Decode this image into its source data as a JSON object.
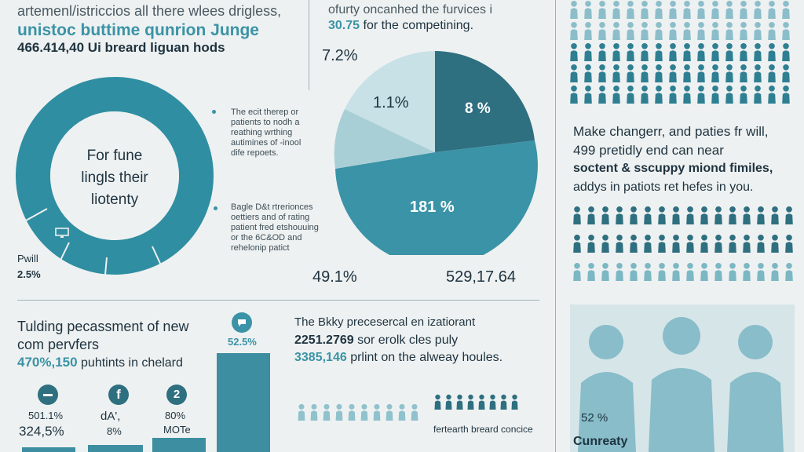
{
  "top_left": {
    "line1": "artemenl/istriccios all there wlees drigless,",
    "line2": "unistoc buttime qunrion Junge",
    "line3": "466.414,40 Ui breard liguan hods"
  },
  "top_center": {
    "line1": "ofurty oncanhed the furvices i",
    "line2_num": "30.75",
    "line2_text": "for the competining."
  },
  "donut": {
    "center_line1": "For fune",
    "center_line2": "lingls their",
    "center_line3": "liotenty",
    "pwill_label": "Pwill",
    "pwill_value": "2.5%",
    "icon": "monitor-icon"
  },
  "notes": {
    "note1": [
      "The ecit therep or",
      "patients to nodh a",
      "reathing wrthing",
      "autimines of -inool",
      "dife repoets."
    ],
    "note2": [
      "Bagle D&t rtrerionces",
      "oettiers and of rating",
      "patient fred etshouuing",
      "or the 6C&OD and",
      "rehelonip patict"
    ]
  },
  "pie": {
    "top_label": "7.2%",
    "slice_a": "1.1%",
    "slice_b": "8 %",
    "slice_c": "181 %",
    "bottom_left": "49.1%",
    "bottom_right": "529,17.64"
  },
  "right_panel": {
    "line1": "Make changerr, and paties fr will,",
    "line2": "499 pretidly end can near",
    "line3": "soctent & sscuppy miond fimiles,",
    "line4": "addys in patiots ret hefes in you.",
    "bottom_pct": "52 %",
    "bottom_label": "Cunreaty"
  },
  "bottom_left": {
    "line1": "Tulding pecassment of new",
    "line2": "com pervfers",
    "line3_num": "470%,150",
    "line3_text": "puhtints in chelard",
    "bar_top_pct": "52.5%",
    "col1_icon": "minus-icon",
    "col1_a": "501.1%",
    "col1_b": "324,5%",
    "col2_icon": "facebook-icon",
    "col2_a": "dA',",
    "col2_b": "8%",
    "col3_icon_label": "2",
    "col3_a": "80%",
    "col3_b": "MOTe",
    "chat_icon": "chat-icon"
  },
  "bottom_center": {
    "line1": "The Bkky precesercal en izatiorant",
    "line2_num": "2251.2769",
    "line2_text": "sor erolk cles puly",
    "line3_num": "3385,146",
    "line3_text": "prlint on the alweay houles.",
    "caption": "fertearth breard concice"
  },
  "colors": {
    "teal": "#3a93a6",
    "dark_teal": "#2e6f80",
    "light_teal": "#a9cfd6",
    "navy": "#1e3340"
  }
}
